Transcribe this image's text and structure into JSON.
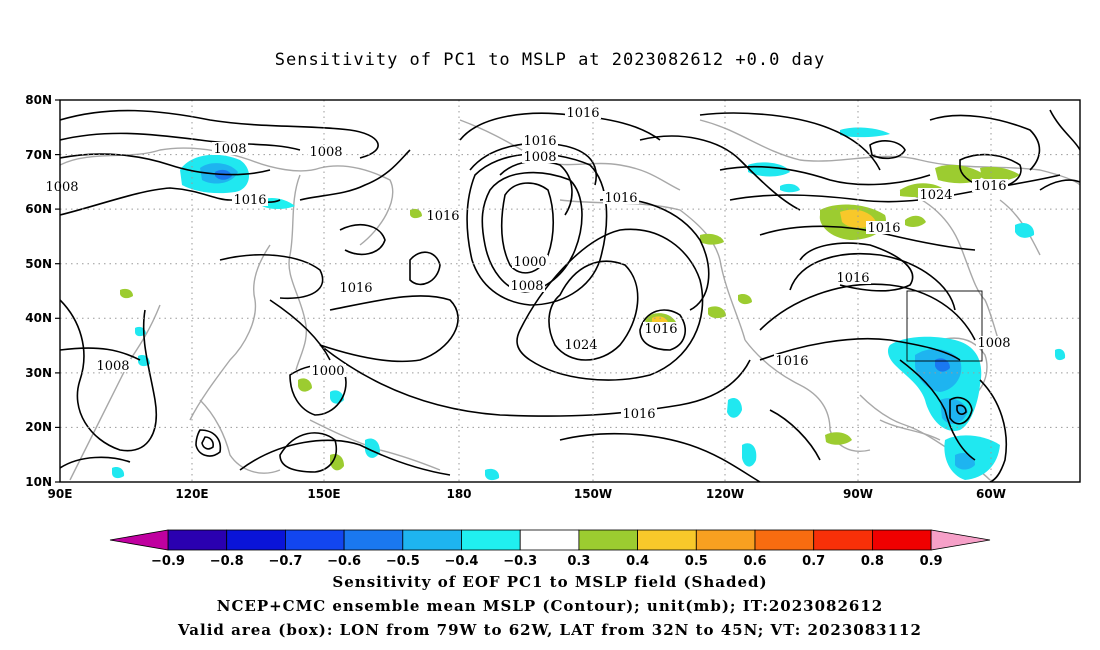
{
  "title": "Sensitivity of PC1 to MSLP at 2023082612 +0.0 day",
  "map": {
    "lat_labels": [
      "80N",
      "70N",
      "60N",
      "50N",
      "40N",
      "30N",
      "20N",
      "10N"
    ],
    "lon_labels": [
      "90E",
      "120E",
      "150E",
      "180",
      "150W",
      "120W",
      "90W",
      "60W"
    ],
    "contour_labels": [
      "1016",
      "1016",
      "1008",
      "1008",
      "1008",
      "1016",
      "1016",
      "1000",
      "1008",
      "1016",
      "1016",
      "1016",
      "1024",
      "1016",
      "1016",
      "1008",
      "1000",
      "1016",
      "1024",
      "1016",
      "1016",
      "1008",
      "1008"
    ],
    "valid_box": {
      "lon_from": "79W",
      "lon_to": "62W",
      "lat_from": "32N",
      "lat_to": "45N"
    }
  },
  "colorbar": {
    "labels": [
      "-0.9",
      "-0.8",
      "-0.7",
      "-0.6",
      "-0.5",
      "-0.4",
      "-0.3",
      "0.3",
      "0.4",
      "0.5",
      "0.6",
      "0.7",
      "0.8",
      "0.9"
    ],
    "colors": [
      "#2a00b0",
      "#0a14d8",
      "#1246f0",
      "#1a78f0",
      "#1eb4f0",
      "#20f0f0",
      "#ffffff",
      "#9ccc30",
      "#f8c82a",
      "#f8a020",
      "#f86c10",
      "#f83008",
      "#f00000"
    ],
    "low_arrow_color": "#c000a0",
    "high_arrow_color": "#f6a0c8"
  },
  "captions": [
    "Sensitivity of EOF PC1 to MSLP field (Shaded)",
    "NCEP+CMC ensemble mean MSLP (Contour); unit(mb); IT:2023082612",
    "Valid area (box): LON from 79W to 62W, LAT from 32N to 45N; VT: 2023083112"
  ]
}
